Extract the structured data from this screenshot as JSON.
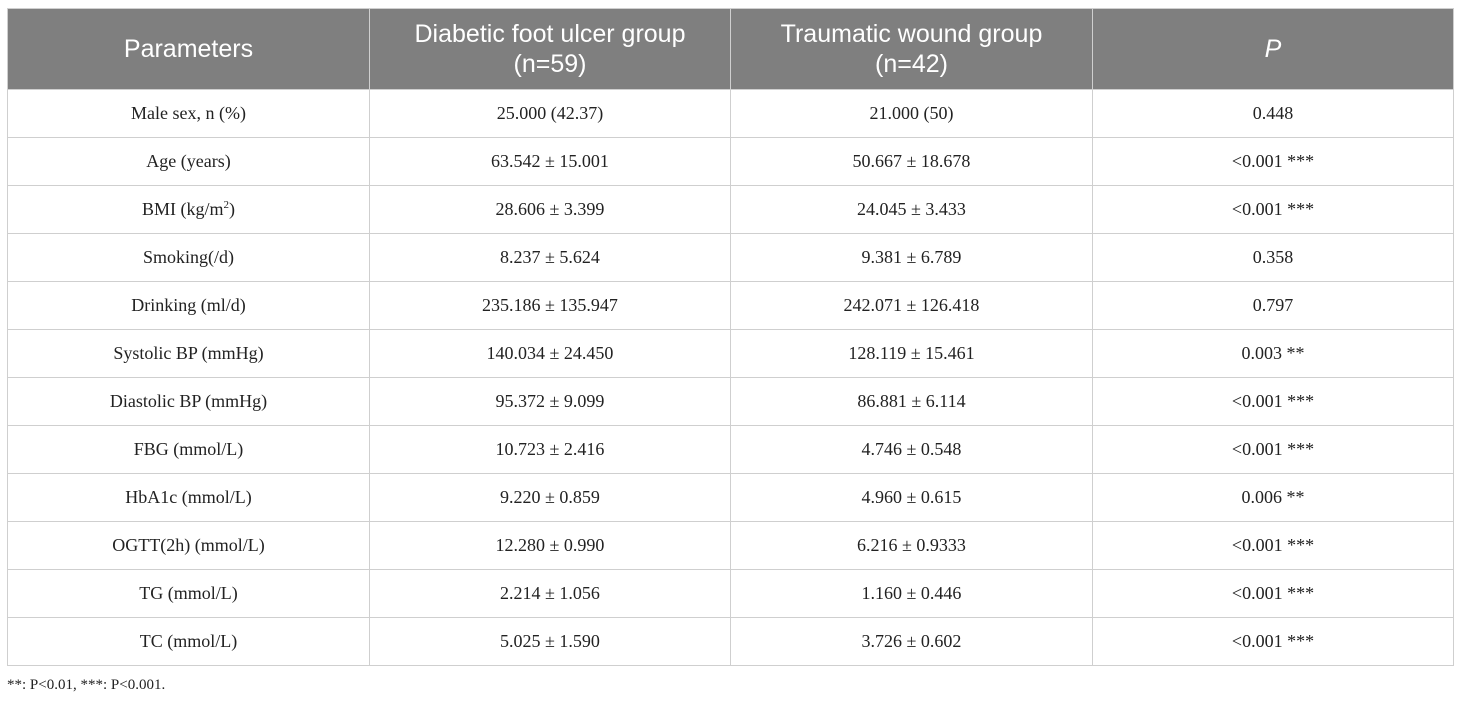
{
  "table": {
    "headers": [
      "Parameters",
      "Diabetic foot ulcer group (n=59)",
      "Traumatic wound group (n=42)",
      "P"
    ],
    "rows": [
      {
        "param": "Male sex, n (%)",
        "dfu": "25.000 (42.37)",
        "tw": "21.000 (50)",
        "p": "0.448"
      },
      {
        "param": "Age (years)",
        "dfu": "63.542 ± 15.001",
        "tw": "50.667 ± 18.678",
        "p": "<0.001 ***"
      },
      {
        "param_pre": "BMI (kg/m",
        "param_sup": "2",
        "param_post": ")",
        "dfu": "28.606 ± 3.399",
        "tw": "24.045 ± 3.433",
        "p": "<0.001 ***"
      },
      {
        "param": "Smoking(/d)",
        "dfu": "8.237 ± 5.624",
        "tw": "9.381 ± 6.789",
        "p": "0.358"
      },
      {
        "param": "Drinking (ml/d)",
        "dfu": "235.186 ± 135.947",
        "tw": "242.071 ± 126.418",
        "p": "0.797"
      },
      {
        "param": "Systolic BP (mmHg)",
        "dfu": "140.034 ± 24.450",
        "tw": "128.119 ± 15.461",
        "p": "0.003 **"
      },
      {
        "param": "Diastolic BP (mmHg)",
        "dfu": "95.372 ± 9.099",
        "tw": "86.881 ± 6.114",
        "p": "<0.001 ***"
      },
      {
        "param": "FBG (mmol/L)",
        "dfu": "10.723 ± 2.416",
        "tw": "4.746 ± 0.548",
        "p": "<0.001 ***"
      },
      {
        "param": "HbA1c (mmol/L)",
        "dfu": "9.220 ± 0.859",
        "tw": "4.960 ± 0.615",
        "p": "0.006 **"
      },
      {
        "param": "OGTT(2h) (mmol/L)",
        "dfu": "12.280 ± 0.990",
        "tw": "6.216 ± 0.9333",
        "p": "<0.001 ***"
      },
      {
        "param": "TG (mmol/L)",
        "dfu": "2.214 ± 1.056",
        "tw": "1.160 ± 0.446",
        "p": "<0.001 ***"
      },
      {
        "param": "TC (mmol/L)",
        "dfu": "5.025 ± 1.590",
        "tw": "3.726 ± 0.602",
        "p": "<0.001 ***"
      }
    ]
  },
  "footnote": "**: P<0.01, ***: P<0.001.",
  "colors": {
    "header_bg": "#7f7f7f",
    "header_text": "#ffffff",
    "border": "#cfcfcf"
  }
}
